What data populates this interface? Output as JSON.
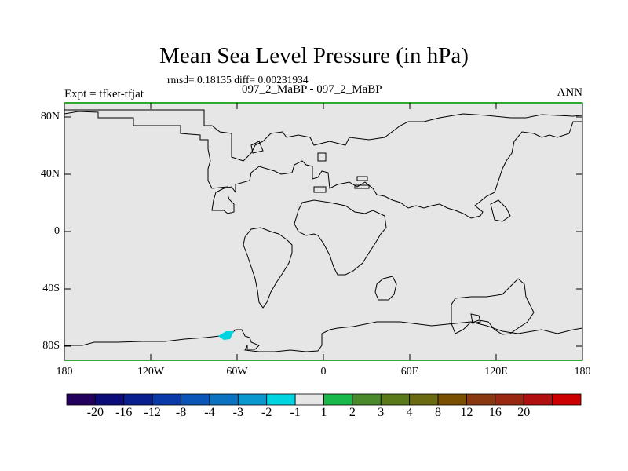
{
  "title": "Mean Sea Level Pressure (in hPa)",
  "stats": "rmsd= 0.18135 diff= 0.00231934",
  "experiment": "Expt = tfket-tfjat",
  "comparison": "097_2_MaBP - 097_2_MaBP",
  "season": "ANN",
  "lat_ticks": [
    "80N",
    "40N",
    "0",
    "40S",
    "80S"
  ],
  "lon_ticks": [
    "180",
    "120W",
    "60W",
    "0",
    "60E",
    "120E",
    "180"
  ],
  "colorbar": {
    "colors": [
      "#24005e",
      "#0b0b7a",
      "#0a1f8f",
      "#0a3aa8",
      "#0a55b8",
      "#0a72c0",
      "#0a97d0",
      "#00d4e0",
      "#e6e6e6",
      "#1ab84a",
      "#4a8a2a",
      "#5a7a1a",
      "#6a6a10",
      "#7a5000",
      "#8a3810",
      "#9a2810",
      "#b01010",
      "#cc0000"
    ],
    "labels": [
      "-20",
      "-16",
      "-12",
      "-8",
      "-4",
      "-3",
      "-2",
      "-1",
      "1",
      "2",
      "3",
      "4",
      "8",
      "12",
      "16",
      "20"
    ]
  },
  "map_colors": {
    "background": "#e6e6e6",
    "coastline": "#000000",
    "frame_accent": "#2eaa2e",
    "anomaly_patch": "#00d4e0"
  },
  "chart_data": {
    "type": "heatmap",
    "title": "Mean Sea Level Pressure (in hPa)",
    "x_range": [
      -180,
      180
    ],
    "y_range": [
      -90,
      90
    ],
    "field_value_range": [
      -1,
      1
    ],
    "anomalies": [
      {
        "lon": -66,
        "lat": -73,
        "bin": "-1 to -2"
      }
    ]
  }
}
